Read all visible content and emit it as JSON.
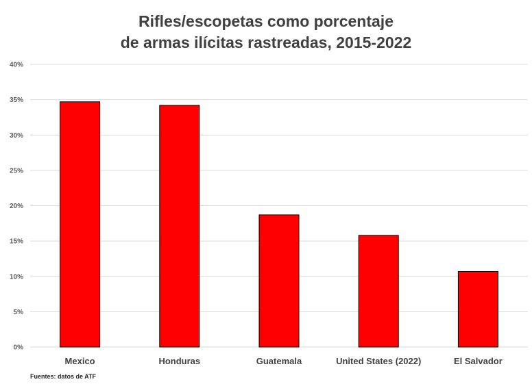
{
  "chart_data": {
    "type": "bar",
    "title_lines": [
      "Rifles/escopetas como porcentaje",
      "de armas ilícitas rastreadas, 2015-2022"
    ],
    "categories": [
      "Mexico",
      "Honduras",
      "Guatemala",
      "United States (2022)",
      "El Salvador"
    ],
    "values": [
      34.7,
      34.2,
      18.7,
      15.8,
      10.7
    ],
    "y_unit": "%",
    "ylim": [
      0,
      40
    ],
    "yticks": [
      0,
      5,
      10,
      15,
      20,
      25,
      30,
      35,
      40
    ],
    "ytick_labels": [
      "0%",
      "5%",
      "10%",
      "15%",
      "20%",
      "25%",
      "30%",
      "35%",
      "40%"
    ],
    "xlabel": "",
    "ylabel": "",
    "grid": true,
    "legend": "none",
    "bar_color": "#ff0000",
    "bar_edge_color": "#000000",
    "gridline_color": "#d9d9d9"
  },
  "footer": {
    "source": "Fuentes: datos de ATF"
  }
}
